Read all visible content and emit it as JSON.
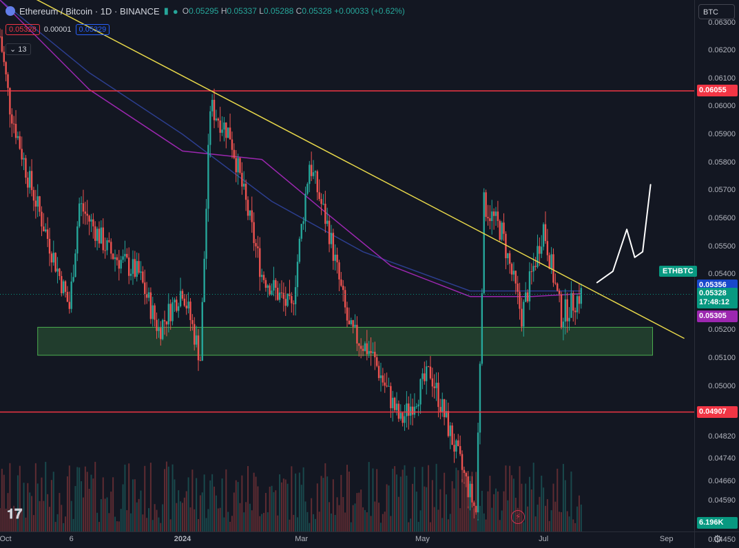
{
  "header": {
    "title": "Ethereum / Bitcoin · 1D · BINANCE",
    "ohlc": {
      "o_label": "O",
      "o": "0.05295",
      "h_label": "H",
      "h": "0.05337",
      "l_label": "L",
      "l": "0.05288",
      "c_label": "C",
      "c": "0.05328",
      "chg": "+0.00033 (+0.62%)"
    },
    "bid": "0.05328",
    "spread": "0.00001",
    "ask": "0.05329",
    "indicator_count": "13",
    "currency_button": "BTC"
  },
  "colors": {
    "bg": "#131722",
    "up": "#26a69a",
    "down": "#ef5350",
    "trend": "#e8d84a",
    "hline": "#f23645",
    "zone": "#4caf50",
    "ma_blue": "#2c3e8f",
    "ma_purple": "#9c27b0"
  },
  "chart_data": {
    "type": "candlestick",
    "symbol": "ETHBTC",
    "x_range": [
      "2023-10-01",
      "2024-09-15"
    ],
    "y_range": [
      0.0448,
      0.0638
    ],
    "y_ticks": [
      "0.06300",
      "0.06200",
      "0.06100",
      "0.06000",
      "0.05900",
      "0.05800",
      "0.05700",
      "0.05600",
      "0.05500",
      "0.05400",
      "0.05200",
      "0.05100",
      "0.05000",
      "0.04820",
      "0.04740",
      "0.04660",
      "0.04590",
      "0.04520",
      "0.04450"
    ],
    "x_ticks": [
      "Oct",
      "6",
      "2024",
      "Mar",
      "May",
      "Jul",
      "Sep"
    ],
    "x_tick_dates": [
      "2023-10-01",
      "2023-11-06",
      "2024-01-01",
      "2024-03-01",
      "2024-05-01",
      "2024-07-01",
      "2024-09-01"
    ],
    "horizontal_levels": [
      {
        "label": "0.06055",
        "value": 0.06055
      },
      {
        "label": "0.04907",
        "value": 0.04907
      }
    ],
    "support_zone": {
      "from": "2023-10-20",
      "to": "2024-08-25",
      "low": 0.0511,
      "high": 0.0521
    },
    "trendline": [
      {
        "x": "2023-10-01",
        "y": 0.0645
      },
      {
        "x": "2024-09-10",
        "y": 0.0517
      }
    ],
    "price_tags": [
      {
        "value": 0.05356,
        "label": "0.05356",
        "color": "#1848cc"
      },
      {
        "value": 0.05328,
        "label": "0.05328",
        "sub": "17:48:12",
        "color": "#089981"
      },
      {
        "value": 0.05305,
        "label": "0.05305",
        "color": "#9c27b0"
      }
    ],
    "symbol_tag": "ETHBTC",
    "volume_label": "6.196K",
    "key_points": [
      {
        "date": "2023-10-01",
        "close": 0.0625
      },
      {
        "date": "2023-10-06",
        "close": 0.06
      },
      {
        "date": "2023-10-15",
        "close": 0.0575
      },
      {
        "date": "2023-10-25",
        "close": 0.0553
      },
      {
        "date": "2023-11-05",
        "close": 0.0528
      },
      {
        "date": "2023-11-10",
        "close": 0.0565
      },
      {
        "date": "2023-11-25",
        "close": 0.0548
      },
      {
        "date": "2023-12-10",
        "close": 0.054
      },
      {
        "date": "2023-12-20",
        "close": 0.052
      },
      {
        "date": "2024-01-01",
        "close": 0.0535
      },
      {
        "date": "2024-01-10",
        "close": 0.051
      },
      {
        "date": "2024-01-15",
        "close": 0.06
      },
      {
        "date": "2024-01-25",
        "close": 0.059
      },
      {
        "date": "2024-02-10",
        "close": 0.054
      },
      {
        "date": "2024-02-25",
        "close": 0.0527
      },
      {
        "date": "2024-03-05",
        "close": 0.058
      },
      {
        "date": "2024-03-15",
        "close": 0.0555
      },
      {
        "date": "2024-03-25",
        "close": 0.052
      },
      {
        "date": "2024-04-05",
        "close": 0.0512
      },
      {
        "date": "2024-04-20",
        "close": 0.0487
      },
      {
        "date": "2024-05-05",
        "close": 0.0505
      },
      {
        "date": "2024-05-20",
        "close": 0.0472
      },
      {
        "date": "2024-05-28",
        "close": 0.0455
      },
      {
        "date": "2024-06-01",
        "close": 0.0565
      },
      {
        "date": "2024-06-10",
        "close": 0.0555
      },
      {
        "date": "2024-06-20",
        "close": 0.0525
      },
      {
        "date": "2024-07-01",
        "close": 0.0557
      },
      {
        "date": "2024-07-10",
        "close": 0.0525
      },
      {
        "date": "2024-07-20",
        "close": 0.0533
      }
    ],
    "ma_slow": [
      {
        "date": "2023-10-01",
        "y": 0.0638
      },
      {
        "date": "2023-11-15",
        "y": 0.0612
      },
      {
        "date": "2024-01-01",
        "y": 0.059
      },
      {
        "date": "2024-02-15",
        "y": 0.0566
      },
      {
        "date": "2024-04-01",
        "y": 0.0548
      },
      {
        "date": "2024-05-25",
        "y": 0.0534
      },
      {
        "date": "2024-06-25",
        "y": 0.0534
      },
      {
        "date": "2024-07-20",
        "y": 0.0534
      }
    ],
    "ma_fast": [
      {
        "date": "2023-10-01",
        "y": 0.0638
      },
      {
        "date": "2023-11-15",
        "y": 0.0606
      },
      {
        "date": "2024-01-01",
        "y": 0.0584
      },
      {
        "date": "2024-02-10",
        "y": 0.0581
      },
      {
        "date": "2024-03-15",
        "y": 0.0561
      },
      {
        "date": "2024-04-15",
        "y": 0.0543
      },
      {
        "date": "2024-05-25",
        "y": 0.0532
      },
      {
        "date": "2024-06-25",
        "y": 0.0532
      },
      {
        "date": "2024-07-20",
        "y": 0.0533
      }
    ],
    "projection_sketch": [
      {
        "date": "2024-07-28",
        "y": 0.0537
      },
      {
        "date": "2024-08-05",
        "y": 0.0541
      },
      {
        "date": "2024-08-12",
        "y": 0.0556
      },
      {
        "date": "2024-08-16",
        "y": 0.0546
      },
      {
        "date": "2024-08-20",
        "y": 0.0548
      },
      {
        "date": "2024-08-24",
        "y": 0.0572
      }
    ]
  }
}
